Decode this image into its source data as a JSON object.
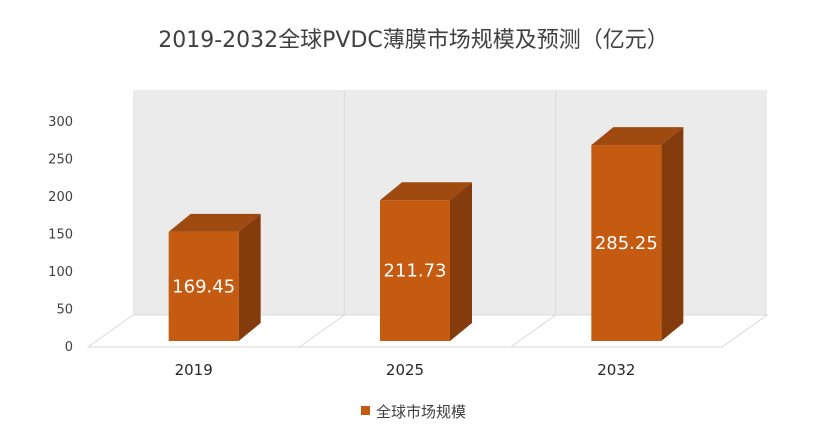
{
  "colors": {
    "bar_front": "#C55A11",
    "bar_side": "#843C0C",
    "bar_top": "#9E4A10",
    "wall": "#EBEBEB",
    "floor": "#FFFFFF",
    "grid": "#D9D9D9"
  },
  "chart_data": {
    "type": "bar",
    "title": "2019-2032全球PVDC薄膜市场规模及预测（亿元）",
    "categories": [
      "2019",
      "2025",
      "2032"
    ],
    "series": [
      {
        "name": "全球市场规模",
        "values": [
          169.45,
          211.73,
          285.25
        ],
        "labels": [
          "169.45",
          "211.73",
          "285.25"
        ]
      }
    ],
    "ylim": [
      0,
      300
    ],
    "yticks": [
      0,
      50,
      100,
      150,
      200,
      250,
      300
    ],
    "grid": true,
    "legend_position": "bottom",
    "style": "3d-column"
  }
}
